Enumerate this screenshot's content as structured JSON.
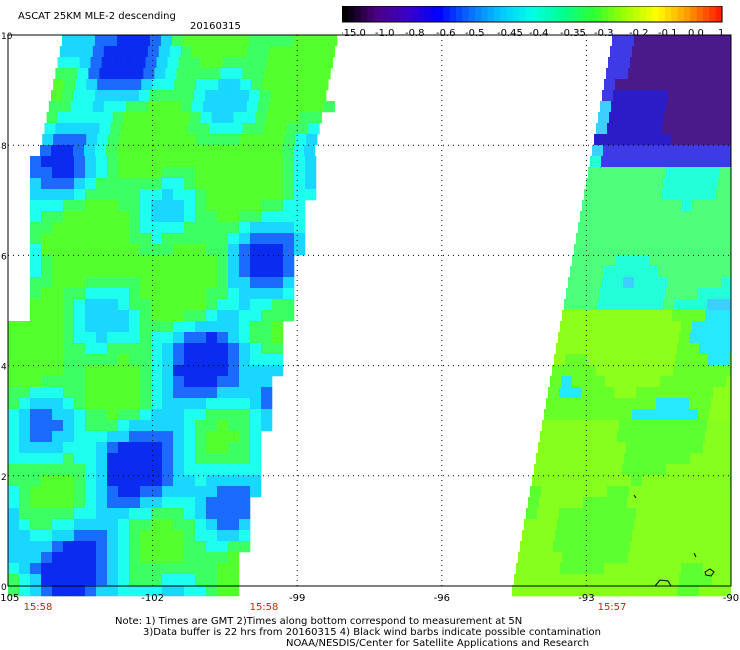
{
  "header": {
    "title": "ASCAT 25KM MLE-2 descending",
    "date": "20160315"
  },
  "colorbar": {
    "labels": [
      "-15.0",
      "-1.0",
      "-0.8",
      "-0.6",
      "-0.5",
      "-0.45",
      "-0.4",
      "-0.35",
      "-0.3",
      "-0.2",
      "-0.1",
      "0.0",
      "1.0"
    ],
    "colors": [
      "#000000",
      "#4b0082",
      "#3a00c8",
      "#0000ff",
      "#0a6cff",
      "#00c8ff",
      "#00ffe6",
      "#00ff90",
      "#30ff30",
      "#a0ff00",
      "#ffff00",
      "#ff9a00",
      "#ff2000"
    ]
  },
  "axes": {
    "y_ticks": [
      "0",
      "2",
      "4",
      "6",
      "8",
      "10"
    ],
    "x_ticks": [
      "-105",
      "-102",
      "-99",
      "-96",
      "-93",
      "-90"
    ]
  },
  "swath_times": [
    "15:58",
    "15:58",
    "15:57"
  ],
  "notes": {
    "line1": "Note: 1) Times are GMT 2)Times along bottom correspond to measurement at 5N",
    "line2": "3)Data buffer is 22 hrs from 20160315 4) Black wind barbs indicate possible contamination",
    "line3": "NOAA/NESDIS/Center for Satellite Applications and Research"
  }
}
